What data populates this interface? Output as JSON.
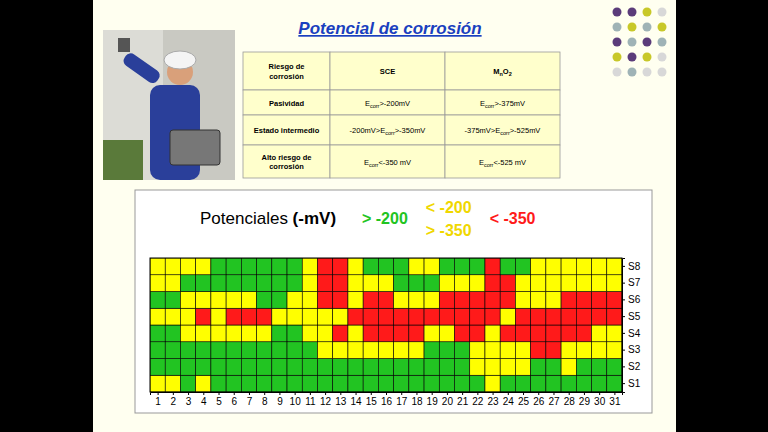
{
  "title": "Potencial de corrosión",
  "table": {
    "header": [
      [
        [
          "Riesgo de"
        ],
        [
          "corrosión"
        ]
      ],
      [
        [
          "SCE"
        ]
      ],
      [
        [
          "M",
          "n",
          "O",
          "2"
        ]
      ]
    ],
    "rows": [
      [
        [
          [
            "Pasividad"
          ]
        ],
        [
          [
            "E",
            "corr",
            ">-200mV"
          ]
        ],
        [
          [
            "E",
            "corr",
            ">-375mV"
          ]
        ]
      ],
      [
        [
          [
            "Estado intermedio"
          ]
        ],
        [
          [
            "-200mV>E",
            "corr",
            ">-350mV"
          ]
        ],
        [
          [
            "-375mV>E",
            "corr",
            ">-525mV"
          ]
        ]
      ],
      [
        [
          [
            "Alto riesgo de"
          ],
          [
            "corrosión"
          ]
        ],
        [
          [
            "E",
            "corr",
            "<-350 mV"
          ]
        ],
        [
          [
            "E",
            "corr",
            "<-525 mV"
          ]
        ]
      ]
    ]
  },
  "chart_data": {
    "type": "heatmap",
    "title": "Potenciales",
    "unit": "(-mV)",
    "x": [
      1,
      2,
      3,
      4,
      5,
      6,
      7,
      8,
      9,
      10,
      11,
      12,
      13,
      14,
      15,
      16,
      17,
      18,
      19,
      20,
      21,
      22,
      23,
      24,
      25,
      26,
      27,
      28,
      29,
      30,
      31
    ],
    "xlim": [
      0.5,
      31.5
    ],
    "xticks": [
      1,
      2,
      3,
      4,
      5,
      6,
      7,
      8,
      9,
      10,
      11,
      12,
      13,
      14,
      15,
      16,
      17,
      18,
      19,
      20,
      21,
      22,
      23,
      24,
      25,
      26,
      27,
      28,
      29,
      30,
      31
    ],
    "y": [
      "S1",
      "S2",
      "S3",
      "S4",
      "S5",
      "S6",
      "S7",
      "S8"
    ],
    "values": [
      [
        -240,
        -230,
        -160,
        -220,
        -170,
        -150,
        -140,
        -130,
        -150,
        -160,
        -140,
        -150,
        -160,
        -170,
        -150,
        -140,
        -130,
        -150,
        -160,
        -170,
        -180,
        -190,
        -230,
        -170,
        -160,
        -150,
        -140,
        -150,
        -160,
        -150,
        -140
      ],
      [
        -160,
        -150,
        -140,
        -150,
        -160,
        -170,
        -150,
        -140,
        -150,
        -160,
        -170,
        -180,
        -170,
        -180,
        -170,
        -160,
        -170,
        -180,
        -160,
        -170,
        -190,
        -240,
        -260,
        -270,
        -230,
        -180,
        -190,
        -220,
        -180,
        -170,
        -160
      ],
      [
        -180,
        -170,
        -160,
        -170,
        -180,
        -170,
        -160,
        -170,
        -180,
        -170,
        -190,
        -250,
        -270,
        -260,
        -280,
        -290,
        -270,
        -240,
        -180,
        -170,
        -190,
        -260,
        -290,
        -300,
        -320,
        -370,
        -380,
        -310,
        -290,
        -270,
        -250
      ],
      [
        -190,
        -195,
        -260,
        -280,
        -300,
        -290,
        -270,
        -240,
        -180,
        -190,
        -260,
        -320,
        -380,
        -330,
        -400,
        -420,
        -410,
        -380,
        -320,
        -300,
        -390,
        -400,
        -330,
        -400,
        -430,
        -450,
        -440,
        -420,
        -380,
        -320,
        -300
      ],
      [
        -260,
        -270,
        -300,
        -390,
        -310,
        -380,
        -400,
        -370,
        -300,
        -270,
        -260,
        -280,
        -320,
        -370,
        -420,
        -450,
        -460,
        -440,
        -430,
        -410,
        -400,
        -390,
        -370,
        -340,
        -410,
        -440,
        -460,
        -430,
        -420,
        -400,
        -390
      ],
      [
        -180,
        -190,
        -240,
        -270,
        -280,
        -260,
        -250,
        -190,
        -180,
        -240,
        -280,
        -400,
        -410,
        -320,
        -380,
        -370,
        -320,
        -300,
        -330,
        -390,
        -420,
        -430,
        -410,
        -380,
        -330,
        -300,
        -320,
        -370,
        -390,
        -380,
        -370
      ],
      [
        -220,
        -210,
        -170,
        -160,
        -150,
        -160,
        -170,
        -160,
        -150,
        -180,
        -260,
        -420,
        -410,
        -280,
        -240,
        -230,
        -190,
        -170,
        -180,
        -230,
        -260,
        -300,
        -380,
        -370,
        -240,
        -250,
        -260,
        -270,
        -260,
        -250,
        -240
      ],
      [
        -240,
        -230,
        -220,
        -210,
        -180,
        -170,
        -160,
        -150,
        -160,
        -170,
        -230,
        -400,
        -390,
        -250,
        -180,
        -170,
        -190,
        -220,
        -230,
        -180,
        -170,
        -160,
        -380,
        -190,
        -180,
        -220,
        -240,
        -250,
        -260,
        -250,
        -240
      ]
    ],
    "color_bar": {
      "thresholds": [
        -350,
        -200
      ],
      "bins": [
        {
          "label": [
            "< -350"
          ],
          "color": "#ff1a1a"
        },
        {
          "label": [
            "< -200",
            "> -350"
          ],
          "color": "#ffff00"
        },
        {
          "label": [
            "> -200"
          ],
          "color": "#22c422"
        }
      ]
    },
    "grid": true
  }
}
